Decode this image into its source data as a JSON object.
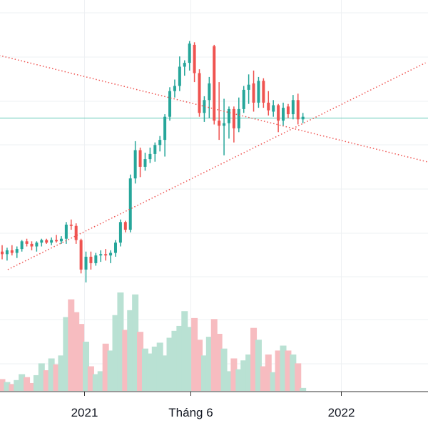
{
  "chart_data": {
    "type": "candlestick",
    "title": "",
    "xlabel": "",
    "ylabel": "",
    "grid": true,
    "x_ticks": [
      {
        "label": "2021",
        "date": "2021-01-01"
      },
      {
        "label": "Tháng 6",
        "date": "2021-06-01"
      },
      {
        "label": "2022",
        "date": "2022-01-01"
      }
    ],
    "horizontal_line": {
      "value": 100.0
    },
    "trendlines": [
      {
        "name": "resistance",
        "from": {
          "date": "2020-04-01",
          "value": 170
        },
        "to": {
          "date": "2022-06-01",
          "value": 62
        }
      },
      {
        "name": "support",
        "from": {
          "date": "2020-09-15",
          "value": -18
        },
        "to": {
          "date": "2022-05-01",
          "value": 143
        }
      }
    ],
    "candles": [
      {
        "date": "2020-09-07",
        "open": -4.0,
        "high": 1.0,
        "low": -10.0,
        "close": -6.0,
        "volume": 12
      },
      {
        "date": "2020-09-14",
        "open": -6.0,
        "high": -1.0,
        "low": -11.0,
        "close": -3.0,
        "volume": 9
      },
      {
        "date": "2020-09-21",
        "open": -3.0,
        "high": 1.0,
        "low": -7.0,
        "close": -5.0,
        "volume": 7
      },
      {
        "date": "2020-09-28",
        "open": -5.0,
        "high": 0.0,
        "low": -9.0,
        "close": -2.0,
        "volume": 11
      },
      {
        "date": "2020-10-05",
        "open": -2.0,
        "high": 5.0,
        "low": -4.0,
        "close": 4.0,
        "volume": 17
      },
      {
        "date": "2020-10-12",
        "open": 4.0,
        "high": 6.0,
        "low": 0.0,
        "close": 2.0,
        "volume": 14
      },
      {
        "date": "2020-10-19",
        "open": 2.0,
        "high": 4.0,
        "low": -3.0,
        "close": 0.0,
        "volume": 8
      },
      {
        "date": "2020-10-26",
        "open": 0.0,
        "high": 4.0,
        "low": -4.0,
        "close": 3.0,
        "volume": 16
      },
      {
        "date": "2020-11-02",
        "open": 3.0,
        "high": 6.0,
        "low": 0.0,
        "close": 5.0,
        "volume": 28
      },
      {
        "date": "2020-11-09",
        "open": 5.0,
        "high": 6.0,
        "low": 2.0,
        "close": 3.0,
        "volume": 21
      },
      {
        "date": "2020-11-16",
        "open": 3.0,
        "high": 7.0,
        "low": 1.0,
        "close": 5.0,
        "volume": 33
      },
      {
        "date": "2020-11-23",
        "open": 5.0,
        "high": 9.0,
        "low": 3.0,
        "close": 4.0,
        "volume": 27
      },
      {
        "date": "2020-11-30",
        "open": 4.0,
        "high": 8.0,
        "low": 2.0,
        "close": 6.0,
        "volume": 36
      },
      {
        "date": "2020-12-07",
        "open": 6.0,
        "high": 19.0,
        "low": 2.0,
        "close": 17.0,
        "volume": 75
      },
      {
        "date": "2020-12-14",
        "open": 17.0,
        "high": 21.0,
        "low": 13.0,
        "close": 16.0,
        "volume": 93
      },
      {
        "date": "2020-12-21",
        "open": 16.0,
        "high": 18.0,
        "low": 2.0,
        "close": 5.0,
        "volume": 80
      },
      {
        "date": "2020-12-28",
        "open": 5.0,
        "high": 6.0,
        "low": -21.0,
        "close": -18.0,
        "volume": 68
      },
      {
        "date": "2021-01-04",
        "open": -18.0,
        "high": -4.0,
        "low": -28.0,
        "close": -8.0,
        "volume": 50
      },
      {
        "date": "2021-01-11",
        "open": -8.0,
        "high": -4.0,
        "low": -18.0,
        "close": -13.0,
        "volume": 25
      },
      {
        "date": "2021-01-18",
        "open": -13.0,
        "high": -5.0,
        "low": -15.0,
        "close": -7.0,
        "volume": 17
      },
      {
        "date": "2021-01-25",
        "open": -7.0,
        "high": -3.0,
        "low": -12.0,
        "close": -6.0,
        "volume": 20
      },
      {
        "date": "2021-02-01",
        "open": -6.0,
        "high": -2.0,
        "low": -11.0,
        "close": -7.0,
        "volume": 48
      },
      {
        "date": "2021-02-08",
        "open": -7.0,
        "high": -3.0,
        "low": -13.0,
        "close": -5.0,
        "volume": 41
      },
      {
        "date": "2021-02-15",
        "open": -5.0,
        "high": 5.0,
        "low": -8.0,
        "close": 3.0,
        "volume": 77
      },
      {
        "date": "2021-02-22",
        "open": 3.0,
        "high": 21.0,
        "low": 0.0,
        "close": 19.0,
        "volume": 100
      },
      {
        "date": "2021-03-01",
        "open": 19.0,
        "high": 20.0,
        "low": 11.0,
        "close": 13.0,
        "volume": 62
      },
      {
        "date": "2021-03-08",
        "open": 13.0,
        "high": 56.0,
        "low": 11.0,
        "close": 53.0,
        "volume": 82
      },
      {
        "date": "2021-03-15",
        "open": 53.0,
        "high": 82.0,
        "low": 49.0,
        "close": 75.0,
        "volume": 98
      },
      {
        "date": "2021-03-22",
        "open": 75.0,
        "high": 77.0,
        "low": 54.0,
        "close": 62.0,
        "volume": 60
      },
      {
        "date": "2021-03-29",
        "open": 62.0,
        "high": 73.0,
        "low": 59.0,
        "close": 68.0,
        "volume": 43
      },
      {
        "date": "2021-04-05",
        "open": 68.0,
        "high": 77.0,
        "low": 65.0,
        "close": 72.0,
        "volume": 38
      },
      {
        "date": "2021-04-12",
        "open": 72.0,
        "high": 81.0,
        "low": 66.0,
        "close": 79.0,
        "volume": 45
      },
      {
        "date": "2021-04-19",
        "open": 79.0,
        "high": 86.0,
        "low": 74.0,
        "close": 83.0,
        "volume": 49
      },
      {
        "date": "2021-04-26",
        "open": 83.0,
        "high": 103.0,
        "low": 70.0,
        "close": 101.0,
        "volume": 36
      },
      {
        "date": "2021-05-03",
        "open": 101.0,
        "high": 124.0,
        "low": 98.0,
        "close": 121.0,
        "volume": 54
      },
      {
        "date": "2021-05-10",
        "open": 121.0,
        "high": 130.0,
        "low": 116.0,
        "close": 125.0,
        "volume": 61
      },
      {
        "date": "2021-05-17",
        "open": 125.0,
        "high": 148.0,
        "low": 121.0,
        "close": 140.0,
        "volume": 66
      },
      {
        "date": "2021-05-24",
        "open": 140.0,
        "high": 145.0,
        "low": 133.0,
        "close": 143.0,
        "volume": 81
      },
      {
        "date": "2021-05-31",
        "open": 143.0,
        "high": 160.0,
        "low": 137.0,
        "close": 158.0,
        "volume": 65
      },
      {
        "date": "2021-06-07",
        "open": 157.0,
        "high": 159.0,
        "low": 128.0,
        "close": 135.0,
        "volume": 74
      },
      {
        "date": "2021-06-14",
        "open": 135.0,
        "high": 138.0,
        "low": 101.0,
        "close": 104.0,
        "volume": 52
      },
      {
        "date": "2021-06-21",
        "open": 104.0,
        "high": 117.0,
        "low": 97.0,
        "close": 114.0,
        "volume": 36
      },
      {
        "date": "2021-06-28",
        "open": 114.0,
        "high": 132.0,
        "low": 100.0,
        "close": 127.0,
        "volume": 55
      },
      {
        "date": "2021-07-05",
        "open": 156.0,
        "high": 157.0,
        "low": 95.0,
        "close": 98.0,
        "volume": 73
      },
      {
        "date": "2021-07-12",
        "open": 98.0,
        "high": 128.0,
        "low": 83.0,
        "close": 94.0,
        "volume": 58
      },
      {
        "date": "2021-07-19",
        "open": 94.0,
        "high": 115.0,
        "low": 71.0,
        "close": 96.0,
        "volume": 43
      },
      {
        "date": "2021-07-26",
        "open": 96.0,
        "high": 109.0,
        "low": 84.0,
        "close": 107.0,
        "volume": 20
      },
      {
        "date": "2021-08-02",
        "open": 107.0,
        "high": 109.0,
        "low": 81.0,
        "close": 92.0,
        "volume": 33
      },
      {
        "date": "2021-08-09",
        "open": 92.0,
        "high": 116.0,
        "low": 89.0,
        "close": 107.0,
        "volume": 22
      },
      {
        "date": "2021-08-16",
        "open": 107.0,
        "high": 125.0,
        "low": 104.0,
        "close": 122.0,
        "volume": 31
      },
      {
        "date": "2021-08-23",
        "open": 122.0,
        "high": 134.0,
        "low": 111.0,
        "close": 126.0,
        "volume": 37
      },
      {
        "date": "2021-08-30",
        "open": 127.0,
        "high": 137.0,
        "low": 105.0,
        "close": 112.0,
        "volume": 64
      },
      {
        "date": "2021-09-06",
        "open": 112.0,
        "high": 132.0,
        "low": 108.0,
        "close": 129.0,
        "volume": 52
      },
      {
        "date": "2021-09-13",
        "open": 129.0,
        "high": 131.0,
        "low": 108.0,
        "close": 112.0,
        "volume": 25
      },
      {
        "date": "2021-09-20",
        "open": 112.0,
        "high": 121.0,
        "low": 102.0,
        "close": 106.0,
        "volume": 37
      },
      {
        "date": "2021-09-27",
        "open": 105.0,
        "high": 114.0,
        "low": 101.0,
        "close": 110.0,
        "volume": 19
      },
      {
        "date": "2021-10-04",
        "open": 110.0,
        "high": 111.0,
        "low": 89.0,
        "close": 98.0,
        "volume": 41
      },
      {
        "date": "2021-10-11",
        "open": 98.0,
        "high": 112.0,
        "low": 94.0,
        "close": 108.0,
        "volume": 46
      },
      {
        "date": "2021-10-18",
        "open": 109.0,
        "high": 111.0,
        "low": 100.0,
        "close": 103.0,
        "volume": 41
      },
      {
        "date": "2021-10-25",
        "open": 103.0,
        "high": 118.0,
        "low": 99.0,
        "close": 114.0,
        "volume": 37
      },
      {
        "date": "2021-11-01",
        "open": 114.0,
        "high": 119.0,
        "low": 95.0,
        "close": 99.0,
        "volume": 28
      },
      {
        "date": "2021-11-08",
        "open": 99.0,
        "high": 104.0,
        "low": 96.0,
        "close": 101.0,
        "volume": 3
      }
    ]
  },
  "colors": {
    "up": "#26a69a",
    "down": "#ef5350",
    "up_volume": "#b9e1d3",
    "down_volume": "#f7bcc0",
    "trendline": "#ef5350",
    "horizontal_line": "#5fc8b5",
    "grid": "#eef0f3",
    "text": "#131722",
    "axis": "#333333"
  }
}
